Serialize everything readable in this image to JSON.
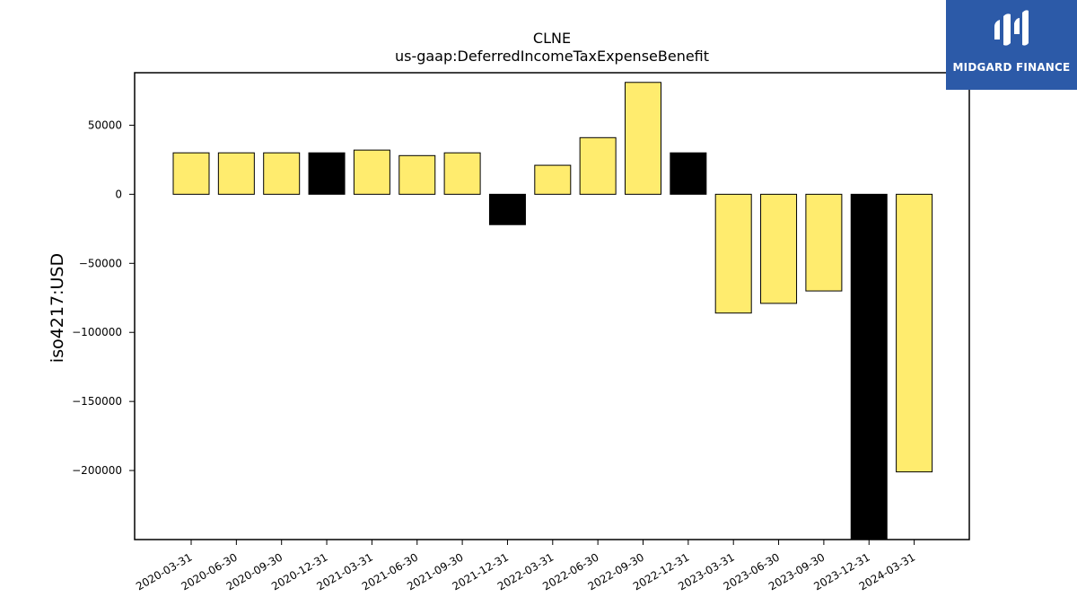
{
  "chart_data": {
    "type": "bar",
    "title": "CLNE",
    "subtitle": "us-gaap:DeferredIncomeTaxExpenseBenefit",
    "xlabel": "",
    "ylabel": "iso4217:USD",
    "categories": [
      "2020-03-31",
      "2020-06-30",
      "2020-09-30",
      "2020-12-31",
      "2021-03-31",
      "2021-06-30",
      "2021-09-30",
      "2021-12-31",
      "2022-03-31",
      "2022-06-30",
      "2022-09-30",
      "2022-12-31",
      "2023-03-31",
      "2023-06-30",
      "2023-09-30",
      "2023-12-31",
      "2024-03-31"
    ],
    "values": [
      30000,
      30000,
      30000,
      30000,
      32000,
      28000,
      30000,
      -22000,
      21000,
      41000,
      81000,
      30000,
      -86000,
      -79000,
      -70000,
      -250000,
      -201000
    ],
    "highlight": [
      false,
      false,
      false,
      true,
      false,
      false,
      false,
      true,
      false,
      false,
      false,
      true,
      false,
      false,
      false,
      true,
      false
    ],
    "ylim": [
      -250000,
      88000
    ],
    "yticks": [
      50000,
      0,
      -50000,
      -100000,
      -150000,
      -200000
    ],
    "ytick_labels": [
      "50000",
      "0",
      "−50000",
      "−100000",
      "−150000",
      "−200000"
    ],
    "grid": false,
    "colors": {
      "bar": "#ffec6e",
      "highlight_bar": "#000000",
      "edge": "#000000"
    }
  },
  "branding": {
    "logo_text": "MIDGARD FINANCE",
    "logo_bg": "#2c5aa8"
  }
}
